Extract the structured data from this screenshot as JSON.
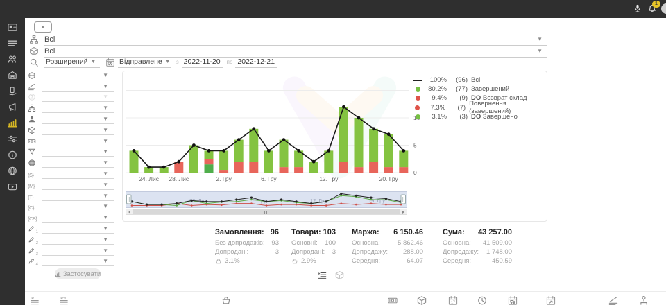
{
  "topbar": {
    "badge_count": "1"
  },
  "rail": {
    "items": [
      {
        "icon": "image-card-icon"
      },
      {
        "icon": "list-icon"
      },
      {
        "icon": "users-icon"
      },
      {
        "icon": "storefront-icon"
      },
      {
        "icon": "hand-phone-icon"
      },
      {
        "icon": "megaphone-icon"
      },
      {
        "icon": "bar-chart-icon",
        "active": true
      },
      {
        "icon": "sliders-icon"
      },
      {
        "icon": "info-icon"
      },
      {
        "icon": "globe-icon"
      },
      {
        "icon": "video-icon"
      }
    ]
  },
  "header": {
    "selects": [
      {
        "icon": "sitemap-icon",
        "value": "Всі"
      },
      {
        "icon": "box-icon",
        "value": "Всі"
      }
    ],
    "search": {
      "icon": "search-icon",
      "mode": "Розширений",
      "date_field_icon": "calendar-truck-icon",
      "date_field": "Відправлене",
      "from_label": "з",
      "date_from": "2022-11-20",
      "to_label": "по",
      "date_to": "2022-12-21"
    }
  },
  "filter_panel": {
    "rows": [
      {
        "icon": "globe-icon"
      },
      {
        "icon": "ruler-icon"
      },
      {
        "icon": "question-icon",
        "disabled": true
      },
      {
        "icon": "sitemap-icon"
      },
      {
        "icon": "user-icon"
      },
      {
        "icon": "box-icon"
      },
      {
        "icon": "banknote-icon"
      },
      {
        "icon": "funnel-icon"
      },
      {
        "icon": "globe-wire-icon"
      },
      {
        "icon": "brace",
        "text": "{S}"
      },
      {
        "icon": "brace",
        "text": "{M}"
      },
      {
        "icon": "brace",
        "text": "{T}"
      },
      {
        "icon": "brace",
        "text": "{C}"
      },
      {
        "icon": "brace",
        "text": "{CB}"
      },
      {
        "icon": "pencil-icon",
        "sub": "1"
      },
      {
        "icon": "pencil-icon",
        "sub": "2"
      },
      {
        "icon": "pencil-icon",
        "sub": "3"
      },
      {
        "icon": "pencil-icon",
        "sub": "4"
      }
    ],
    "apply_button": {
      "icon": "bar-chart-icon",
      "label": "Застосувати"
    }
  },
  "chart_data": {
    "type": "bar",
    "title": "",
    "xlabel": "",
    "ylabel": "",
    "stacked": true,
    "line_overlay": true,
    "ylim": [
      0,
      15
    ],
    "y_ticks": [
      "0",
      "5",
      "10"
    ],
    "x_ticks": [
      {
        "index": 1,
        "label": "24. Лис"
      },
      {
        "index": 3,
        "label": "28. Лис"
      },
      {
        "index": 6,
        "label": "2. Гру"
      },
      {
        "index": 9,
        "label": "6. Гру"
      },
      {
        "index": 13,
        "label": "12. Гру"
      },
      {
        "index": 17,
        "label": "20. Гру"
      }
    ],
    "colors": {
      "completed": "#84c341",
      "returned": "#e8655b",
      "do_completed": "#4fae4b",
      "line": "#1a1a1a"
    },
    "bars": [
      [
        [
          "completed",
          4
        ]
      ],
      [
        [
          "completed",
          1
        ]
      ],
      [
        [
          "completed",
          1
        ]
      ],
      [
        [
          "returned",
          2
        ]
      ],
      [
        [
          "completed",
          5
        ]
      ],
      [
        [
          "do_completed",
          1.5
        ],
        [
          "returned",
          1
        ],
        [
          "completed",
          1.5
        ]
      ],
      [
        [
          "returned",
          0.5
        ],
        [
          "completed",
          3.5
        ]
      ],
      [
        [
          "returned",
          2
        ],
        [
          "completed",
          4
        ]
      ],
      [
        [
          "returned",
          2
        ],
        [
          "completed",
          6
        ]
      ],
      [
        [
          "completed",
          4
        ]
      ],
      [
        [
          "returned",
          1
        ],
        [
          "completed",
          5
        ]
      ],
      [
        [
          "returned",
          1
        ],
        [
          "completed",
          3
        ]
      ],
      [
        [
          "completed",
          2
        ]
      ],
      [
        [
          "completed",
          4
        ]
      ],
      [
        [
          "returned",
          2
        ],
        [
          "completed",
          10
        ]
      ],
      [
        [
          "returned",
          1
        ],
        [
          "completed",
          9
        ]
      ],
      [
        [
          "returned",
          2
        ],
        [
          "completed",
          6
        ]
      ],
      [
        [
          "returned",
          1
        ],
        [
          "completed",
          6
        ]
      ],
      [
        [
          "returned",
          1
        ],
        [
          "completed",
          3
        ]
      ]
    ],
    "line_values": [
      4,
      1,
      1,
      2,
      5,
      4,
      4,
      6,
      8,
      4,
      6,
      4,
      2,
      4,
      12,
      10,
      8,
      7,
      4
    ],
    "legend": [
      {
        "swatch": "line",
        "color": "#222222",
        "pct": "100%",
        "count": "(96)",
        "label": "Всі"
      },
      {
        "swatch": "dot",
        "color": "#76c043",
        "pct": "80.2%",
        "count": "(77)",
        "label": "Завершений"
      },
      {
        "swatch": "dot",
        "color": "#df5349",
        "pct": "9.4%",
        "count": "(9)",
        "bold": "DO",
        "label": "Возврат склад"
      },
      {
        "swatch": "dot",
        "color": "#df5349",
        "pct": "7.3%",
        "count": "(7)",
        "label": "Повернення (завершений)"
      },
      {
        "swatch": "dot",
        "color": "#76c043",
        "pct": "3.1%",
        "count": "(3)",
        "bold": "DO",
        "label": "Завершено"
      }
    ],
    "navigator": {
      "labels": [
        "28. Лис",
        "5. Гру",
        "12. Гру",
        "19. Гру"
      ],
      "green": [
        4,
        1,
        1,
        0,
        5,
        2,
        3.5,
        4,
        6,
        4,
        5,
        3,
        2,
        4,
        10,
        9,
        6,
        6,
        3
      ],
      "red": [
        0,
        0,
        0,
        2,
        0,
        1,
        0.5,
        2,
        2,
        0,
        1,
        1,
        0,
        0,
        2,
        1,
        2,
        1,
        1
      ]
    }
  },
  "stats": {
    "columns": [
      {
        "title": "Замовлення:",
        "value": "96",
        "rows": [
          {
            "label": "Без допродажів:",
            "value": "93"
          },
          {
            "label": "Допродані:",
            "value": "3"
          },
          {
            "icon": "basket-icon",
            "value": "3.1%"
          }
        ]
      },
      {
        "title": "Товари:",
        "value": "103",
        "rows": [
          {
            "label": "Основні:",
            "value": "100"
          },
          {
            "label": "Допродані:",
            "value": "3"
          },
          {
            "icon": "basket-icon",
            "value": "2.9%"
          }
        ]
      },
      {
        "title": "Маржа:",
        "value": "6 150.46",
        "rows": [
          {
            "label": "Основна:",
            "value": "5 862.46"
          },
          {
            "label": "Допродажу:",
            "value": "288.00"
          },
          {
            "label": "Середня:",
            "value": "64.07"
          }
        ]
      },
      {
        "title": "Сума:",
        "value": "43 257.00",
        "rows": [
          {
            "label": "Основна:",
            "value": "41 509.00"
          },
          {
            "label": "Допродажу:",
            "value": "1 748.00"
          },
          {
            "label": "Середня:",
            "value": "450.59"
          }
        ]
      }
    ]
  },
  "view_toggles": [
    {
      "icon": "list-arrow-icon",
      "active": true
    },
    {
      "icon": "box-icon",
      "active": false
    }
  ],
  "toolbar": {
    "items": [
      {
        "icon": "id-lines-icon",
        "text": "ID"
      },
      {
        "icon": "id-lines-icon",
        "text": "ID-o"
      },
      {
        "icon": "basket-icon"
      },
      {
        "icon": "banknote-icon"
      },
      {
        "icon": "box-icon"
      },
      {
        "icon": "calendar-17-icon"
      },
      {
        "icon": "clock-icon"
      },
      {
        "icon": "calendar-truck-icon"
      },
      {
        "icon": "calendar-arrow-icon"
      },
      {
        "icon": "ruler-icon"
      },
      {
        "icon": "sitemap-user-icon"
      }
    ]
  }
}
